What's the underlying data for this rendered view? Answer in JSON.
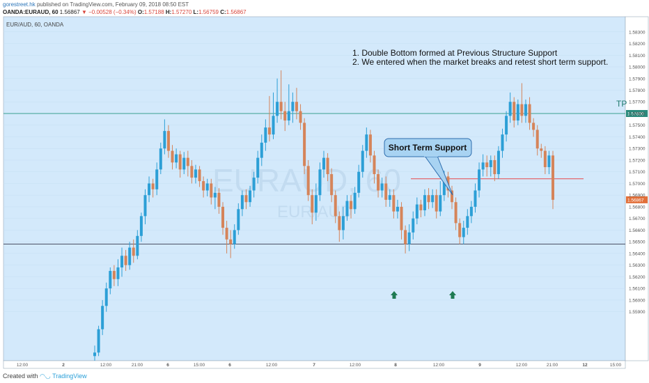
{
  "header": {
    "author": "gorestreet.hk",
    "published": "published on TradingView.com, February 09, 2018 08:50 EST",
    "symbol": "OANDA:EURAUD, 60",
    "last": "1.56867",
    "change": "−0.00528 (−0.34%)",
    "open_label": "O:",
    "open": "1.57188",
    "high_label": "H:",
    "high": "1.57270",
    "low_label": "L:",
    "low": "1.56759",
    "close_label": "C:",
    "close": "1.56867"
  },
  "chart_data": {
    "type": "candlestick",
    "legend": "EUR/AUD, 60, OANDA",
    "watermark": "EURAUD, 60",
    "watermark_sub": "EUR/AUD",
    "annotations": [
      "1. Double Bottom formed at Previous Structure Support",
      "2. We entered when the market breaks and retest short term support."
    ],
    "callout": "Short Term Support",
    "tp_label": "TP",
    "tp_price": 1.576,
    "tp_price_label": "1.57600",
    "support_price": 1.5648,
    "short_term_support": 1.5704,
    "current_price_label": "1.56867",
    "ylim": [
      1.5548,
      1.5843
    ],
    "y_ticks": [
      "1.58300",
      "1.58200",
      "1.58100",
      "1.58000",
      "1.57900",
      "1.57800",
      "1.57700",
      "1.57600",
      "1.57500",
      "1.57400",
      "1.57300",
      "1.57200",
      "1.57100",
      "1.57000",
      "1.56900",
      "1.56800",
      "1.56700",
      "1.56600",
      "1.56500",
      "1.56400",
      "1.56300",
      "1.56200",
      "1.56100",
      "1.56000",
      "1.55900"
    ],
    "x_ticks": [
      "12:00",
      "2",
      "12:00",
      "21:00",
      "6",
      "15:00",
      "6",
      "12:00",
      "7",
      "12:00",
      "8",
      "12:00",
      "9",
      "12:00",
      "21:00",
      "12",
      "15:00"
    ],
    "colors": {
      "bg": "#d3e9fb",
      "up": "#2c9fd6",
      "down": "#d5845a",
      "tp_line": "#3a9e8f",
      "support_line": "#4a4f63",
      "sts_line": "#e8484a",
      "arrow": "#1e7a52",
      "callout_bg": "#a8d3f2",
      "callout_border": "#2d6dae"
    },
    "candles": [
      [
        1.5552,
        1.5555,
        1.5548,
        1.5561
      ],
      [
        1.5555,
        1.5575,
        1.5552,
        1.5578
      ],
      [
        1.5575,
        1.5595,
        1.557,
        1.56
      ],
      [
        1.5595,
        1.561,
        1.559,
        1.5615
      ],
      [
        1.561,
        1.5625,
        1.5605,
        1.5628
      ],
      [
        1.5625,
        1.5618,
        1.5612,
        1.563
      ],
      [
        1.5618,
        1.5628,
        1.5612,
        1.5635
      ],
      [
        1.5628,
        1.5638,
        1.562,
        1.5645
      ],
      [
        1.5638,
        1.563,
        1.5625,
        1.5643
      ],
      [
        1.563,
        1.5645,
        1.5626,
        1.565
      ],
      [
        1.5645,
        1.5638,
        1.5632,
        1.5652
      ],
      [
        1.5638,
        1.5655,
        1.5635,
        1.566
      ],
      [
        1.5655,
        1.5672,
        1.565,
        1.5675
      ],
      [
        1.5672,
        1.569,
        1.5665,
        1.5695
      ],
      [
        1.569,
        1.57,
        1.5684,
        1.5706
      ],
      [
        1.57,
        1.5695,
        1.5688,
        1.5704
      ],
      [
        1.5695,
        1.5712,
        1.569,
        1.5718
      ],
      [
        1.5712,
        1.573,
        1.5708,
        1.5735
      ],
      [
        1.573,
        1.5745,
        1.5725,
        1.5755
      ],
      [
        1.5745,
        1.5728,
        1.5722,
        1.575
      ],
      [
        1.5728,
        1.5718,
        1.5712,
        1.5733
      ],
      [
        1.5718,
        1.5725,
        1.5713,
        1.573
      ],
      [
        1.5725,
        1.5712,
        1.5705,
        1.5728
      ],
      [
        1.5712,
        1.5722,
        1.5708,
        1.5727
      ],
      [
        1.5722,
        1.5715,
        1.5706,
        1.5728
      ],
      [
        1.5715,
        1.5705,
        1.57,
        1.572
      ],
      [
        1.5705,
        1.5712,
        1.57,
        1.5716
      ],
      [
        1.5712,
        1.5702,
        1.5697,
        1.5715
      ],
      [
        1.5702,
        1.5694,
        1.5688,
        1.5706
      ],
      [
        1.5694,
        1.57,
        1.5689,
        1.5704
      ],
      [
        1.57,
        1.5688,
        1.5682,
        1.5704
      ],
      [
        1.5688,
        1.5692,
        1.5678,
        1.5697
      ],
      [
        1.5692,
        1.568,
        1.5674,
        1.5696
      ],
      [
        1.568,
        1.5662,
        1.5656,
        1.5684
      ],
      [
        1.5662,
        1.5652,
        1.564,
        1.5668
      ],
      [
        1.5652,
        1.5648,
        1.5636,
        1.566
      ],
      [
        1.5648,
        1.566,
        1.5644,
        1.5665
      ],
      [
        1.566,
        1.5678,
        1.5656,
        1.5683
      ],
      [
        1.5678,
        1.569,
        1.5672,
        1.5694
      ],
      [
        1.569,
        1.5684,
        1.5678,
        1.5695
      ],
      [
        1.5684,
        1.5694,
        1.568,
        1.5698
      ],
      [
        1.5694,
        1.5705,
        1.5688,
        1.571
      ],
      [
        1.5705,
        1.5722,
        1.57,
        1.5728
      ],
      [
        1.5722,
        1.5735,
        1.5715,
        1.5742
      ],
      [
        1.5735,
        1.5748,
        1.5728,
        1.5755
      ],
      [
        1.5748,
        1.5742,
        1.5736,
        1.5775
      ],
      [
        1.5742,
        1.5758,
        1.5738,
        1.5778
      ],
      [
        1.5758,
        1.577,
        1.5752,
        1.579
      ],
      [
        1.577,
        1.5762,
        1.5755,
        1.5797
      ],
      [
        1.5762,
        1.5754,
        1.5745,
        1.577
      ],
      [
        1.5754,
        1.5762,
        1.575,
        1.5785
      ],
      [
        1.5762,
        1.577,
        1.5752,
        1.5778
      ],
      [
        1.577,
        1.5762,
        1.5755,
        1.5782
      ],
      [
        1.5762,
        1.5752,
        1.5746,
        1.5768
      ],
      [
        1.5752,
        1.5715,
        1.5708,
        1.5756
      ],
      [
        1.5715,
        1.569,
        1.5685,
        1.572
      ],
      [
        1.569,
        1.5675,
        1.5665,
        1.5695
      ],
      [
        1.5675,
        1.569,
        1.5668,
        1.57
      ],
      [
        1.569,
        1.5712,
        1.5685,
        1.5718
      ],
      [
        1.5712,
        1.5722,
        1.5705,
        1.5728
      ],
      [
        1.5722,
        1.5708,
        1.5702,
        1.5726
      ],
      [
        1.5708,
        1.569,
        1.5684,
        1.5713
      ],
      [
        1.569,
        1.5672,
        1.5666,
        1.5694
      ],
      [
        1.5672,
        1.566,
        1.565,
        1.5676
      ],
      [
        1.566,
        1.5672,
        1.5652,
        1.568
      ],
      [
        1.5672,
        1.5685,
        1.5668,
        1.569
      ],
      [
        1.5685,
        1.5678,
        1.567,
        1.569
      ],
      [
        1.5678,
        1.5692,
        1.5674,
        1.5697
      ],
      [
        1.5692,
        1.571,
        1.5688,
        1.5716
      ],
      [
        1.571,
        1.5728,
        1.5705,
        1.5733
      ],
      [
        1.5728,
        1.5742,
        1.5722,
        1.5748
      ],
      [
        1.5742,
        1.5724,
        1.5718,
        1.5746
      ],
      [
        1.5724,
        1.5708,
        1.57,
        1.5728
      ],
      [
        1.5708,
        1.5694,
        1.5688,
        1.5712
      ],
      [
        1.5694,
        1.57,
        1.5688,
        1.5705
      ],
      [
        1.57,
        1.5686,
        1.568,
        1.5706
      ],
      [
        1.5686,
        1.569,
        1.568,
        1.5695
      ],
      [
        1.569,
        1.5676,
        1.567,
        1.5695
      ],
      [
        1.5676,
        1.568,
        1.567,
        1.5686
      ],
      [
        1.568,
        1.566,
        1.5652,
        1.5684
      ],
      [
        1.566,
        1.5648,
        1.564,
        1.5664
      ],
      [
        1.5648,
        1.5658,
        1.5642,
        1.5665
      ],
      [
        1.5658,
        1.567,
        1.5652,
        1.5676
      ],
      [
        1.567,
        1.5682,
        1.5665,
        1.5688
      ],
      [
        1.5682,
        1.5677,
        1.5671,
        1.5686
      ],
      [
        1.5677,
        1.569,
        1.5672,
        1.5695
      ],
      [
        1.569,
        1.5684,
        1.5678,
        1.5696
      ],
      [
        1.5684,
        1.569,
        1.5679,
        1.5695
      ],
      [
        1.569,
        1.5676,
        1.567,
        1.5695
      ],
      [
        1.5676,
        1.569,
        1.5672,
        1.5702
      ],
      [
        1.569,
        1.5706,
        1.5685,
        1.5711
      ],
      [
        1.5706,
        1.5694,
        1.5688,
        1.571
      ],
      [
        1.5694,
        1.5684,
        1.5678,
        1.5698
      ],
      [
        1.5684,
        1.5666,
        1.566,
        1.5688
      ],
      [
        1.5666,
        1.5654,
        1.5648,
        1.567
      ],
      [
        1.5654,
        1.5662,
        1.5648,
        1.5668
      ],
      [
        1.5662,
        1.5672,
        1.5656,
        1.5678
      ],
      [
        1.5672,
        1.568,
        1.5666,
        1.5685
      ],
      [
        1.568,
        1.5694,
        1.5675,
        1.57
      ],
      [
        1.5694,
        1.5712,
        1.5688,
        1.5718
      ],
      [
        1.5712,
        1.5718,
        1.5706,
        1.5725
      ],
      [
        1.5718,
        1.5714,
        1.5706,
        1.5724
      ],
      [
        1.5714,
        1.572,
        1.5706,
        1.5724
      ],
      [
        1.572,
        1.5708,
        1.5702,
        1.5724
      ],
      [
        1.5708,
        1.5728,
        1.5704,
        1.5732
      ],
      [
        1.5728,
        1.5742,
        1.5722,
        1.5747
      ],
      [
        1.5742,
        1.5758,
        1.5736,
        1.5762
      ],
      [
        1.5758,
        1.577,
        1.5752,
        1.5778
      ],
      [
        1.577,
        1.5754,
        1.5748,
        1.5774
      ],
      [
        1.5754,
        1.5768,
        1.575,
        1.5772
      ],
      [
        1.5768,
        1.5758,
        1.5752,
        1.5786
      ],
      [
        1.5758,
        1.5768,
        1.5752,
        1.5772
      ],
      [
        1.5768,
        1.5752,
        1.5746,
        1.5774
      ],
      [
        1.5752,
        1.5746,
        1.574,
        1.5756
      ],
      [
        1.5746,
        1.573,
        1.5724,
        1.575
      ],
      [
        1.573,
        1.5728,
        1.5722,
        1.5734
      ],
      [
        1.5728,
        1.5714,
        1.5708,
        1.5732
      ],
      [
        1.5714,
        1.5724,
        1.5708,
        1.5728
      ],
      [
        1.5724,
        1.5686,
        1.5678,
        1.5728
      ]
    ]
  },
  "footer": {
    "created": "Created with",
    "brand": "TradingView"
  }
}
